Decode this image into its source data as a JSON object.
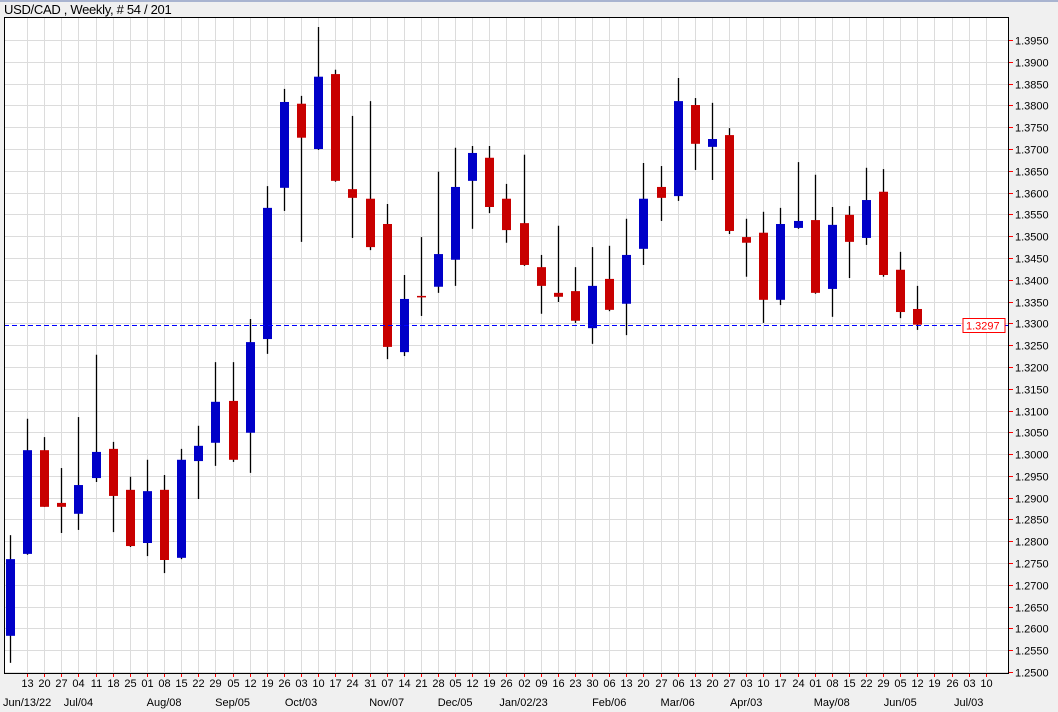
{
  "title": "USD/CAD , Weekly, # 54 / 201",
  "chart_data": {
    "type": "candlestick",
    "symbol": "USD/CAD",
    "timeframe": "Weekly",
    "ylim": [
      1.25,
      1.4
    ],
    "grid": true,
    "colors": {
      "up": "#0000c8",
      "down": "#c80000",
      "wick": "#000000",
      "grid": "#dcdcdc",
      "price_line": "#0000ff",
      "tick": "#ff0000"
    },
    "current_price": "1.3297",
    "y_ticks": [
      "1.2500",
      "1.2550",
      "1.2600",
      "1.2650",
      "1.2700",
      "1.2750",
      "1.2800",
      "1.2850",
      "1.2900",
      "1.2950",
      "1.3000",
      "1.3050",
      "1.3100",
      "1.3150",
      "1.3200",
      "1.3250",
      "1.3300",
      "1.3350",
      "1.3400",
      "1.3450",
      "1.3500",
      "1.3550",
      "1.3600",
      "1.3650",
      "1.3700",
      "1.3750",
      "1.3800",
      "1.3850",
      "1.3900",
      "1.3950"
    ],
    "x_ticks": [
      "13",
      "20",
      "27",
      "04",
      "11",
      "18",
      "25",
      "01",
      "08",
      "15",
      "22",
      "29",
      "05",
      "12",
      "19",
      "26",
      "03",
      "10",
      "17",
      "24",
      "31",
      "07",
      "14",
      "21",
      "28",
      "05",
      "12",
      "19",
      "26",
      "02",
      "09",
      "16",
      "23",
      "30",
      "06",
      "13",
      "20",
      "27",
      "06",
      "13",
      "20",
      "27",
      "03",
      "10",
      "17",
      "24",
      "01",
      "08",
      "15",
      "22",
      "29",
      "05",
      "12",
      "19",
      "26",
      "03",
      "10"
    ],
    "month_labels": [
      {
        "week": 1,
        "label": "Jun/13/22"
      },
      {
        "week": 4,
        "label": "Jul/04"
      },
      {
        "week": 9,
        "label": "Aug/08"
      },
      {
        "week": 13,
        "label": "Sep/05"
      },
      {
        "week": 17,
        "label": "Oct/03"
      },
      {
        "week": 22,
        "label": "Nov/07"
      },
      {
        "week": 26,
        "label": "Dec/05"
      },
      {
        "week": 30,
        "label": "Jan/02/23"
      },
      {
        "week": 35,
        "label": "Feb/06"
      },
      {
        "week": 39,
        "label": "Mar/06"
      },
      {
        "week": 43,
        "label": "Apr/03"
      },
      {
        "week": 48,
        "label": "May/08"
      },
      {
        "week": 52,
        "label": "Jun/05"
      },
      {
        "week": 56,
        "label": "Jul/03"
      }
    ],
    "candles_fields": [
      "date",
      "open",
      "high",
      "low",
      "close"
    ],
    "candles": [
      [
        "2022-06-06",
        1.2583,
        1.2814,
        1.2521,
        1.2759
      ],
      [
        "2022-06-13",
        1.2771,
        1.3081,
        1.2769,
        1.3009
      ],
      [
        "2022-06-20",
        1.3009,
        1.3039,
        1.2879,
        1.2879
      ],
      [
        "2022-06-27",
        1.2888,
        1.2968,
        1.2819,
        1.2879
      ],
      [
        "2022-07-04",
        1.2863,
        1.3085,
        1.2826,
        1.2929
      ],
      [
        "2022-07-11",
        1.2945,
        1.3228,
        1.2936,
        1.3005
      ],
      [
        "2022-07-18",
        1.3012,
        1.3028,
        1.2821,
        1.2904
      ],
      [
        "2022-07-25",
        1.2918,
        1.2948,
        1.2787,
        1.2789
      ],
      [
        "2022-08-01",
        1.2796,
        1.2987,
        1.2766,
        1.2915
      ],
      [
        "2022-08-08",
        1.2918,
        1.2952,
        1.2727,
        1.2757
      ],
      [
        "2022-08-15",
        1.2762,
        1.3012,
        1.2759,
        1.2987
      ],
      [
        "2022-08-22",
        1.2984,
        1.3065,
        1.2897,
        1.3019
      ],
      [
        "2022-08-29",
        1.3026,
        1.3211,
        1.2973,
        1.312
      ],
      [
        "2022-09-05",
        1.3122,
        1.3211,
        1.2982,
        1.2987
      ],
      [
        "2022-09-12",
        1.3049,
        1.331,
        1.2957,
        1.3257
      ],
      [
        "2022-09-19",
        1.3264,
        1.3615,
        1.323,
        1.3565
      ],
      [
        "2022-09-26",
        1.3611,
        1.3838,
        1.3558,
        1.3808
      ],
      [
        "2022-10-03",
        1.3804,
        1.3822,
        1.3487,
        1.3726
      ],
      [
        "2022-10-10",
        1.37,
        1.398,
        1.3698,
        1.3866
      ],
      [
        "2022-10-17",
        1.3872,
        1.3882,
        1.3625,
        1.3627
      ],
      [
        "2022-10-24",
        1.3608,
        1.3776,
        1.3496,
        1.3588
      ],
      [
        "2022-10-31",
        1.3586,
        1.381,
        1.3468,
        1.3475
      ],
      [
        "2022-11-07",
        1.3528,
        1.3574,
        1.3218,
        1.3246
      ],
      [
        "2022-11-14",
        1.3234,
        1.3411,
        1.3225,
        1.3356
      ],
      [
        "2022-11-21",
        1.3363,
        1.3498,
        1.3317,
        1.3361
      ],
      [
        "2022-11-28",
        1.3384,
        1.3648,
        1.337,
        1.3459
      ],
      [
        "2022-12-05",
        1.3446,
        1.3703,
        1.3386,
        1.3613
      ],
      [
        "2022-12-12",
        1.3627,
        1.3707,
        1.3517,
        1.3691
      ],
      [
        "2022-12-19",
        1.368,
        1.3707,
        1.3553,
        1.3567
      ],
      [
        "2022-12-26",
        1.3586,
        1.362,
        1.3485,
        1.3514
      ],
      [
        "2023-01-02",
        1.353,
        1.3687,
        1.3432,
        1.3434
      ],
      [
        "2023-01-09",
        1.3429,
        1.3457,
        1.3322,
        1.3386
      ],
      [
        "2023-01-16",
        1.337,
        1.3524,
        1.3349,
        1.3361
      ],
      [
        "2023-01-23",
        1.3374,
        1.3429,
        1.3301,
        1.3306
      ],
      [
        "2023-01-30",
        1.3289,
        1.3475,
        1.3253,
        1.3386
      ],
      [
        "2023-02-06",
        1.3402,
        1.3478,
        1.3328,
        1.3331
      ],
      [
        "2023-02-13",
        1.3345,
        1.354,
        1.3273,
        1.3457
      ],
      [
        "2023-02-20",
        1.3471,
        1.3668,
        1.3434,
        1.3586
      ],
      [
        "2023-02-27",
        1.3613,
        1.3661,
        1.3535,
        1.3588
      ],
      [
        "2023-03-06",
        1.3592,
        1.3863,
        1.3581,
        1.381
      ],
      [
        "2023-03-13",
        1.3801,
        1.3817,
        1.3652,
        1.3712
      ],
      [
        "2023-03-20",
        1.3705,
        1.3806,
        1.3629,
        1.3723
      ],
      [
        "2023-03-27",
        1.3732,
        1.3748,
        1.3505,
        1.3512
      ],
      [
        "2023-04-03",
        1.3498,
        1.354,
        1.3407,
        1.3485
      ],
      [
        "2023-04-10",
        1.3508,
        1.3556,
        1.3301,
        1.3354
      ],
      [
        "2023-04-17",
        1.3354,
        1.3565,
        1.3342,
        1.3528
      ],
      [
        "2023-04-24",
        1.3519,
        1.367,
        1.3517,
        1.3535
      ],
      [
        "2023-05-01",
        1.3537,
        1.3641,
        1.3368,
        1.337
      ],
      [
        "2023-05-08",
        1.3379,
        1.3567,
        1.3315,
        1.3526
      ],
      [
        "2023-05-15",
        1.3549,
        1.3569,
        1.3404,
        1.3487
      ],
      [
        "2023-05-22",
        1.3496,
        1.3657,
        1.348,
        1.3583
      ],
      [
        "2023-05-29",
        1.3602,
        1.3654,
        1.3407,
        1.3411
      ],
      [
        "2023-06-05",
        1.3423,
        1.3464,
        1.3312,
        1.3326
      ],
      [
        "2023-06-12",
        1.3333,
        1.3386,
        1.3285,
        1.3297
      ]
    ]
  }
}
